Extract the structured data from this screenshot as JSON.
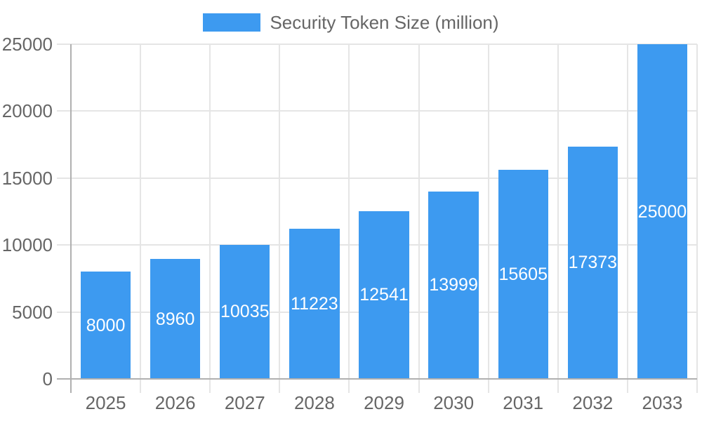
{
  "legend": {
    "label": "Security Token Size (million)"
  },
  "chart_data": {
    "type": "bar",
    "title": "Security Token Size (million)",
    "series_name": "Security Token Size (million)",
    "categories": [
      "2025",
      "2026",
      "2027",
      "2028",
      "2029",
      "2030",
      "2031",
      "2032",
      "2033"
    ],
    "values": [
      8000,
      8960,
      10035,
      11223,
      12541,
      13999,
      15605,
      17373,
      25000
    ],
    "xlabel": "",
    "ylabel": "",
    "ylim": [
      0,
      25000
    ],
    "ytick_step": 5000,
    "yticks": [
      "0",
      "5000",
      "10000",
      "15000",
      "20000",
      "25000"
    ],
    "grid": true,
    "legend_position": "top",
    "value_labels": "inside-center",
    "colors": {
      "bar": "#3D9AF0",
      "bar_value_text": "#ffffff",
      "tick_text": "#666666",
      "gridline": "#e5e5e5",
      "axis_zero_line": "#b0b0b0",
      "background": "#ffffff"
    }
  }
}
